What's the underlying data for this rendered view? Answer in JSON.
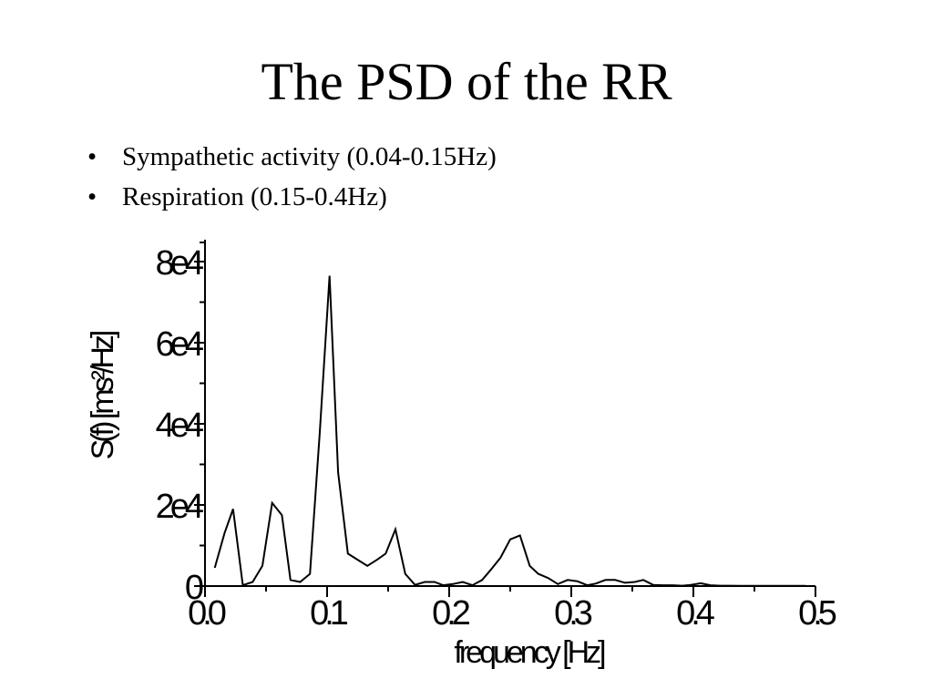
{
  "slide": {
    "title": "The PSD of the RR",
    "bullets": [
      {
        "marker": "•",
        "text": "Sympathetic activity (0.04-0.15Hz)"
      },
      {
        "marker": "•",
        "text": "Respiration (0.15-0.4Hz)"
      }
    ]
  },
  "chart_data": {
    "type": "line",
    "xlabel": "frequency [Hz]",
    "ylabel": "S(f) [ms²/Hz]",
    "xlim": [
      0,
      0.5
    ],
    "ylim": [
      0,
      80000
    ],
    "xticks": [
      0.0,
      0.1,
      0.2,
      0.3,
      0.4,
      0.5
    ],
    "xtick_labels": [
      "0.0",
      "0.1",
      "0.2",
      "0.3",
      "0.4",
      "0.5"
    ],
    "yticks": [
      0,
      20000,
      40000,
      60000,
      80000
    ],
    "ytick_labels": [
      "0",
      "2e4",
      "4e4",
      "6e4",
      "8e4"
    ],
    "grid": false,
    "line_color": "#000000",
    "series": [
      {
        "x": [
          0.008,
          0.016,
          0.023,
          0.031,
          0.039,
          0.047,
          0.055,
          0.063,
          0.07,
          0.078,
          0.086,
          0.094,
          0.102,
          0.109,
          0.117,
          0.125,
          0.133,
          0.141,
          0.148,
          0.156,
          0.164,
          0.172,
          0.18,
          0.188,
          0.195,
          0.203,
          0.211,
          0.219,
          0.227,
          0.234,
          0.242,
          0.25,
          0.258,
          0.266,
          0.273,
          0.281,
          0.289,
          0.297,
          0.305,
          0.313,
          0.32,
          0.328,
          0.336,
          0.344,
          0.352,
          0.359,
          0.367,
          0.375,
          0.383,
          0.391,
          0.398,
          0.406,
          0.414,
          0.422,
          0.43,
          0.438,
          0.445,
          0.453,
          0.461,
          0.469,
          0.477,
          0.484,
          0.492
        ],
        "y": [
          4500,
          13000,
          19000,
          200,
          1000,
          5000,
          20500,
          17500,
          1500,
          1000,
          3000,
          38000,
          76500,
          28000,
          8000,
          6500,
          5000,
          6500,
          8000,
          14000,
          3000,
          300,
          1000,
          1000,
          200,
          500,
          1000,
          200,
          1500,
          4000,
          7000,
          11500,
          12500,
          5000,
          3000,
          2000,
          500,
          1500,
          1200,
          200,
          600,
          1500,
          1500,
          800,
          1000,
          1500,
          300,
          200,
          200,
          100,
          300,
          700,
          200,
          100,
          100,
          50,
          50,
          50,
          50,
          50,
          50,
          50,
          50
        ]
      }
    ]
  }
}
